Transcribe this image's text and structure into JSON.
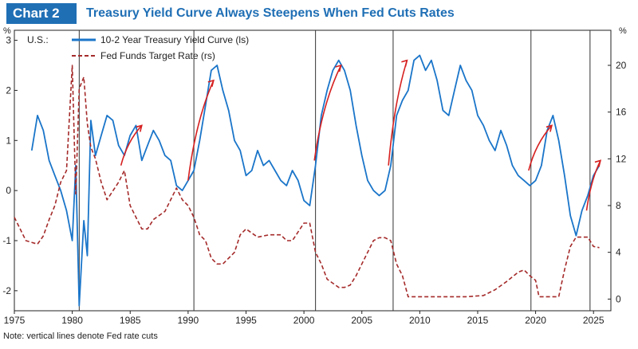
{
  "header": {
    "badge": "Chart 2",
    "title": "Treasury Yield Curve Always Steepens When Fed Cuts Rates"
  },
  "colors": {
    "accent": "#1f6fb5",
    "spread_line": "#1a75c9",
    "fed_funds_line": "#a52a2a",
    "annotation": "#d62020"
  },
  "note": "Note: vertical lines denote Fed rate cuts",
  "chart_data": {
    "type": "line",
    "title": "Treasury Yield Curve Always Steepens When Fed Cuts Rates",
    "region_label": "U.S.:",
    "left_axis_unit": "%",
    "right_axis_unit": "%",
    "x_range": [
      1975,
      2026.5
    ],
    "x_ticks": [
      1975,
      1980,
      1985,
      1990,
      1995,
      2000,
      2005,
      2010,
      2015,
      2020,
      2025
    ],
    "left_ylim": [
      -2.4,
      3.2
    ],
    "left_ticks": [
      -2,
      -1,
      0,
      1,
      2,
      3
    ],
    "right_ylim": [
      -1,
      23
    ],
    "right_ticks": [
      0,
      4,
      8,
      12,
      16,
      20
    ],
    "grid": false,
    "legend_position": "top-left",
    "rate_cut_lines": [
      1980.6,
      1990.5,
      2001.0,
      2007.7,
      2019.6,
      2024.7
    ],
    "series": [
      {
        "name": "10-2 Year Treasury Yield Curve (ls)",
        "axis": "left",
        "style": "solid",
        "x": [
          1976.5,
          1977.0,
          1977.5,
          1978.0,
          1978.5,
          1979.0,
          1979.5,
          1980.0,
          1980.3,
          1980.6,
          1981.0,
          1981.3,
          1981.6,
          1982.0,
          1982.5,
          1983.0,
          1983.5,
          1984.0,
          1984.5,
          1985.0,
          1985.5,
          1986.0,
          1986.5,
          1987.0,
          1987.5,
          1988.0,
          1988.5,
          1989.0,
          1989.5,
          1990.0,
          1990.5,
          1991.0,
          1991.5,
          1992.0,
          1992.5,
          1993.0,
          1993.5,
          1994.0,
          1994.5,
          1995.0,
          1995.5,
          1996.0,
          1996.5,
          1997.0,
          1997.5,
          1998.0,
          1998.5,
          1999.0,
          1999.5,
          2000.0,
          2000.5,
          2001.0,
          2001.5,
          2002.0,
          2002.5,
          2003.0,
          2003.5,
          2004.0,
          2004.5,
          2005.0,
          2005.5,
          2006.0,
          2006.5,
          2007.0,
          2007.5,
          2008.0,
          2008.5,
          2009.0,
          2009.5,
          2010.0,
          2010.5,
          2011.0,
          2011.5,
          2012.0,
          2012.5,
          2013.0,
          2013.5,
          2014.0,
          2014.5,
          2015.0,
          2015.5,
          2016.0,
          2016.5,
          2017.0,
          2017.5,
          2018.0,
          2018.5,
          2019.0,
          2019.5,
          2020.0,
          2020.5,
          2021.0,
          2021.5,
          2022.0,
          2022.5,
          2023.0,
          2023.5,
          2024.0,
          2024.5,
          2025.0,
          2025.5
        ],
        "values": [
          0.8,
          1.5,
          1.2,
          0.6,
          0.3,
          0.0,
          -0.4,
          -1.0,
          0.5,
          -2.3,
          -0.6,
          -1.3,
          1.4,
          0.7,
          1.1,
          1.5,
          1.4,
          0.9,
          0.7,
          1.1,
          1.3,
          0.6,
          0.9,
          1.2,
          1.0,
          0.7,
          0.6,
          0.1,
          0.0,
          0.2,
          0.4,
          1.0,
          1.7,
          2.4,
          2.5,
          2.0,
          1.6,
          1.0,
          0.8,
          0.3,
          0.4,
          0.8,
          0.5,
          0.6,
          0.4,
          0.2,
          0.1,
          0.4,
          0.2,
          -0.2,
          -0.3,
          0.5,
          1.5,
          2.0,
          2.4,
          2.6,
          2.4,
          2.0,
          1.3,
          0.7,
          0.2,
          0.0,
          -0.1,
          0.0,
          0.5,
          1.5,
          1.8,
          2.0,
          2.6,
          2.7,
          2.4,
          2.6,
          2.2,
          1.6,
          1.5,
          2.0,
          2.5,
          2.2,
          2.0,
          1.5,
          1.3,
          1.0,
          0.8,
          1.2,
          0.9,
          0.5,
          0.3,
          0.2,
          0.1,
          0.2,
          0.5,
          1.2,
          1.5,
          1.0,
          0.3,
          -0.5,
          -0.9,
          -0.4,
          -0.1,
          0.3,
          0.5
        ]
      },
      {
        "name": "Fed Funds Target Rate (rs)",
        "axis": "right",
        "style": "dashed",
        "x": [
          1975.0,
          1976.0,
          1977.0,
          1977.5,
          1978.0,
          1978.5,
          1979.0,
          1979.5,
          1980.0,
          1980.3,
          1980.6,
          1981.0,
          1981.3,
          1981.6,
          1982.0,
          1982.5,
          1983.0,
          1984.0,
          1984.5,
          1985.0,
          1986.0,
          1986.5,
          1987.0,
          1988.0,
          1989.0,
          1989.5,
          1990.0,
          1990.5,
          1991.0,
          1991.5,
          1992.0,
          1992.5,
          1993.0,
          1994.0,
          1994.5,
          1995.0,
          1996.0,
          1997.0,
          1998.0,
          1998.5,
          1999.0,
          2000.0,
          2000.5,
          2001.0,
          2001.5,
          2002.0,
          2003.0,
          2003.5,
          2004.0,
          2004.5,
          2005.0,
          2006.0,
          2006.5,
          2007.0,
          2007.5,
          2008.0,
          2008.5,
          2009.0,
          2010.0,
          2012.0,
          2014.0,
          2015.5,
          2016.5,
          2017.5,
          2018.5,
          2019.0,
          2019.5,
          2020.0,
          2020.3,
          2021.0,
          2022.0,
          2022.5,
          2023.0,
          2023.5,
          2024.0,
          2024.5,
          2025.0,
          2025.5
        ],
        "values": [
          7.0,
          5.0,
          4.7,
          5.4,
          6.8,
          8.0,
          10.0,
          11.0,
          20.0,
          9.0,
          18.0,
          19.0,
          15.0,
          13.0,
          12.0,
          10.0,
          8.5,
          10.0,
          11.0,
          8.0,
          6.0,
          6.0,
          6.8,
          7.5,
          9.5,
          8.5,
          8.0,
          7.0,
          5.5,
          5.0,
          3.5,
          3.0,
          3.0,
          4.0,
          5.5,
          6.0,
          5.3,
          5.5,
          5.5,
          5.0,
          5.0,
          6.5,
          6.5,
          4.0,
          3.0,
          1.7,
          1.0,
          1.0,
          1.2,
          2.0,
          3.0,
          5.0,
          5.25,
          5.25,
          5.0,
          3.0,
          2.0,
          0.2,
          0.2,
          0.2,
          0.2,
          0.3,
          0.8,
          1.5,
          2.3,
          2.5,
          2.0,
          1.6,
          0.2,
          0.2,
          0.2,
          2.5,
          4.5,
          5.3,
          5.3,
          5.3,
          4.5,
          4.4
        ]
      }
    ]
  }
}
